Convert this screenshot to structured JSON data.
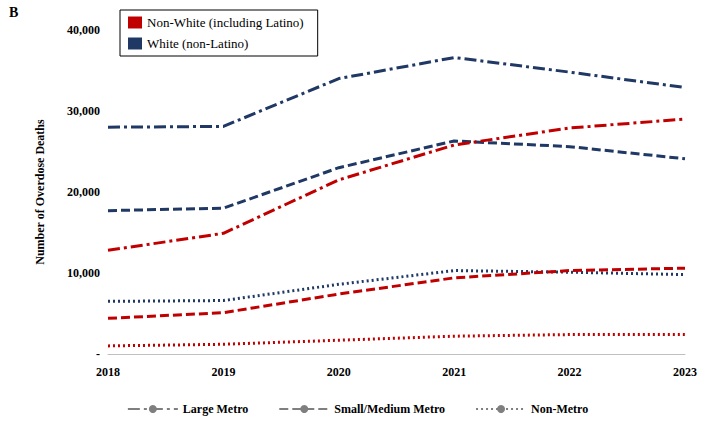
{
  "chart_data": {
    "type": "line",
    "title": "B",
    "y_label": "Number of Overdose Deaths",
    "categories": [
      "2018",
      "2019",
      "2020",
      "2021",
      "2022",
      "2023"
    ],
    "ylim": [
      0,
      40000
    ],
    "yticks": [
      {
        "value": 0,
        "label": "-"
      },
      {
        "value": 10000,
        "label": "10,000"
      },
      {
        "value": 20000,
        "label": "20,000"
      },
      {
        "value": 30000,
        "label": "30,000"
      },
      {
        "value": 40000,
        "label": "40,000"
      }
    ],
    "grid": false,
    "legend": "top-left",
    "color_legend": [
      {
        "name": "Non-White (including Latino)",
        "color": "#c00000"
      },
      {
        "name": "White (non-Latino)",
        "color": "#1f3864"
      }
    ],
    "style_legend": [
      {
        "name": "Large Metro",
        "line_style": "dash-dot",
        "color": "#7f7f7f"
      },
      {
        "name": "Small/Medium Metro",
        "line_style": "dashed",
        "color": "#7f7f7f"
      },
      {
        "name": "Non-Metro",
        "line_style": "dotted",
        "color": "#7f7f7f"
      }
    ],
    "series": [
      {
        "name": "White (non-Latino)",
        "group": "Large Metro",
        "color": "#1f3864",
        "line_style": "dash-dot",
        "values": [
          28000,
          28100,
          34000,
          36600,
          34800,
          32900
        ]
      },
      {
        "name": "White (non-Latino)",
        "group": "Small/Medium Metro",
        "color": "#1f3864",
        "line_style": "dashed",
        "values": [
          17700,
          18000,
          23000,
          26300,
          25600,
          24100
        ]
      },
      {
        "name": "White (non-Latino)",
        "group": "Non-Metro",
        "color": "#1f3864",
        "line_style": "dotted",
        "values": [
          6500,
          6600,
          8600,
          10300,
          10100,
          9800
        ]
      },
      {
        "name": "Non-White (including Latino)",
        "group": "Large Metro",
        "color": "#c00000",
        "line_style": "dash-dot",
        "values": [
          12800,
          14900,
          21500,
          25800,
          27900,
          29000
        ]
      },
      {
        "name": "Non-White (including Latino)",
        "group": "Small/Medium Metro",
        "color": "#c00000",
        "line_style": "dashed",
        "values": [
          4400,
          5100,
          7400,
          9400,
          10300,
          10600
        ]
      },
      {
        "name": "Non-White (including Latino)",
        "group": "Non-Metro",
        "color": "#c00000",
        "line_style": "dotted",
        "values": [
          1000,
          1200,
          1700,
          2200,
          2400,
          2400
        ]
      }
    ]
  }
}
